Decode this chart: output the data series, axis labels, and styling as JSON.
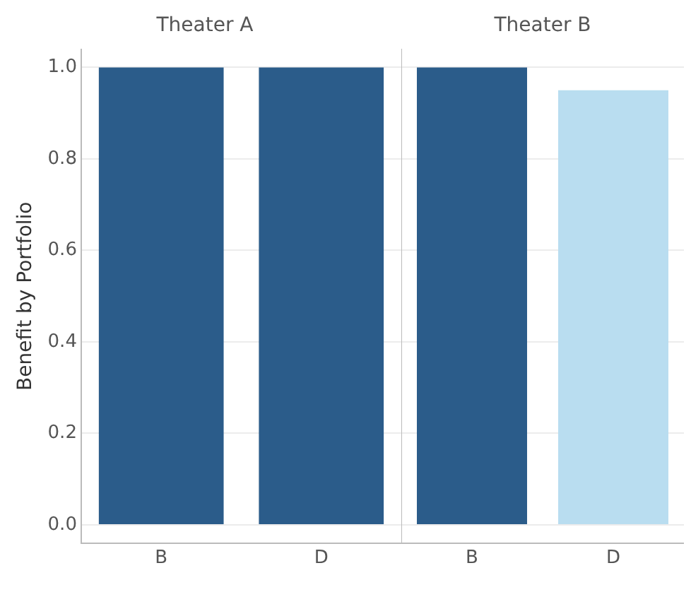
{
  "chart_data": [
    {
      "type": "bar",
      "title": "Theater A",
      "ylabel": "Benefit by Portfolio",
      "categories": [
        "B",
        "D"
      ],
      "values": [
        1.0,
        1.0
      ],
      "colors": [
        "#2b5c8a",
        "#2b5c8a"
      ],
      "ylim": [
        -0.04,
        1.04
      ],
      "yticks": [
        {
          "value": 0,
          "label": "0.0"
        },
        0.2,
        0.4,
        0.6,
        0.8,
        {
          "value": 1,
          "label": "1.0"
        }
      ],
      "grid": "y",
      "legend": false
    },
    {
      "type": "bar",
      "title": "Theater B",
      "categories": [
        "B",
        "D"
      ],
      "values": [
        1.0,
        0.95
      ],
      "colors": [
        "#2b5c8a",
        "#b9ddf0"
      ],
      "ylim": [
        -0.04,
        1.04
      ],
      "yticks": [
        0,
        0.2,
        0.4,
        0.6,
        0.8,
        1
      ],
      "grid": "y",
      "legend": false,
      "tick_labels": "x"
    }
  ]
}
